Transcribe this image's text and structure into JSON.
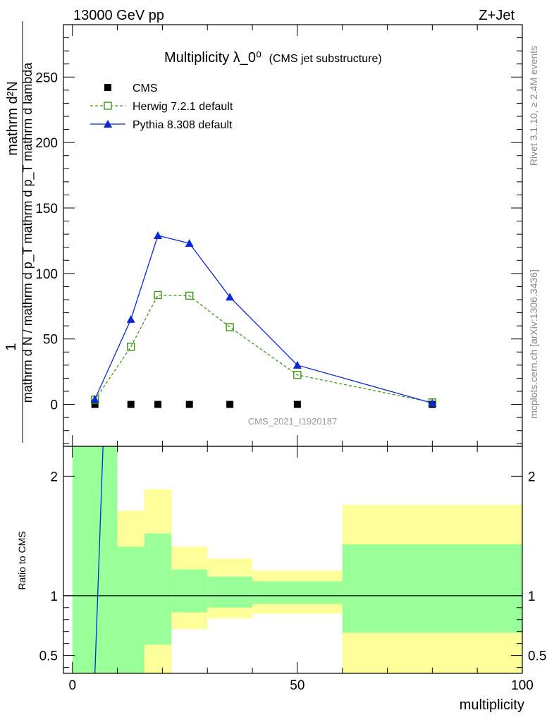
{
  "header": {
    "left": "13000 GeV pp",
    "right": "Z+Jet"
  },
  "side_labels": {
    "rivet": "Rivet 3.1.10, ≥ 2.4M events",
    "mcplots": "mcplots.cern.ch [arXiv:1306.3436]"
  },
  "chart_data": [
    {
      "type": "scatter",
      "title": "Multiplicity λ_0⁰",
      "subtitle": "(CMS jet substructure)",
      "ylabel_numerator": "mathrm d²N",
      "ylabel_denominator": "mathrm d N / mathrm d p_T mathrm d p_T mathrm d lambda",
      "ylabel_prefix": "1",
      "xlim": [
        -2,
        100
      ],
      "ylim": [
        -32,
        290
      ],
      "yticks": [
        0,
        50,
        100,
        150,
        200,
        250
      ],
      "watermark": "CMS_2021_I1920187",
      "series": [
        {
          "name": "CMS",
          "color": "#000000",
          "marker": "square-filled",
          "x": [
            5,
            13,
            19,
            26,
            35,
            50,
            80
          ],
          "y": [
            0,
            0,
            0,
            0,
            0,
            0,
            0
          ]
        },
        {
          "name": "Herwig 7.2.1 default",
          "color": "#3a9a13",
          "marker": "square-open",
          "line": "dashed",
          "x": [
            5,
            13,
            19,
            26,
            35,
            50,
            80
          ],
          "y": [
            3.5,
            44,
            83.5,
            83,
            59,
            22.5,
            1.5
          ]
        },
        {
          "name": "Pythia 8.308 default",
          "color": "#0a28d4",
          "marker": "triangle-filled",
          "line": "solid",
          "x": [
            5,
            13,
            19,
            26,
            35,
            50,
            80
          ],
          "y": [
            4,
            65,
            129,
            123,
            82,
            30,
            1
          ]
        }
      ]
    },
    {
      "type": "area",
      "ylabel": "Ratio to CMS",
      "xlabel": "multiplicity",
      "xlim": [
        -2,
        100
      ],
      "ylim": [
        0.35,
        2.25
      ],
      "yticks": [
        0.5,
        1,
        2
      ],
      "ytick_labels": [
        "0.5",
        "1",
        "2"
      ],
      "xticks": [
        0,
        50,
        100
      ],
      "xtick_labels": [
        "0",
        "50",
        "100"
      ],
      "bands": [
        {
          "x0": 0,
          "x1": 10,
          "yellow": [
            0.35,
            2.25
          ],
          "green": [
            0.35,
            2.25
          ]
        },
        {
          "x0": 10,
          "x1": 16,
          "yellow": [
            0.35,
            1.71
          ],
          "green": [
            0.35,
            1.41
          ]
        },
        {
          "x0": 16,
          "x1": 22,
          "yellow": [
            0.35,
            1.89
          ],
          "green": [
            0.59,
            1.52
          ]
        },
        {
          "x0": 22,
          "x1": 30,
          "yellow": [
            0.72,
            1.41
          ],
          "green": [
            0.86,
            1.22
          ]
        },
        {
          "x0": 30,
          "x1": 40,
          "yellow": [
            0.81,
            1.31
          ],
          "green": [
            0.9,
            1.16
          ]
        },
        {
          "x0": 40,
          "x1": 60,
          "yellow": [
            0.85,
            1.21
          ],
          "green": [
            0.93,
            1.12
          ]
        },
        {
          "x0": 60,
          "x1": 100,
          "yellow": [
            0.35,
            1.76
          ],
          "green": [
            0.69,
            1.43
          ]
        }
      ],
      "pythia_ratio_line": {
        "x": [
          5,
          6.8
        ],
        "y": [
          0.35,
          2.25
        ],
        "color": "#0a28d4"
      }
    }
  ]
}
